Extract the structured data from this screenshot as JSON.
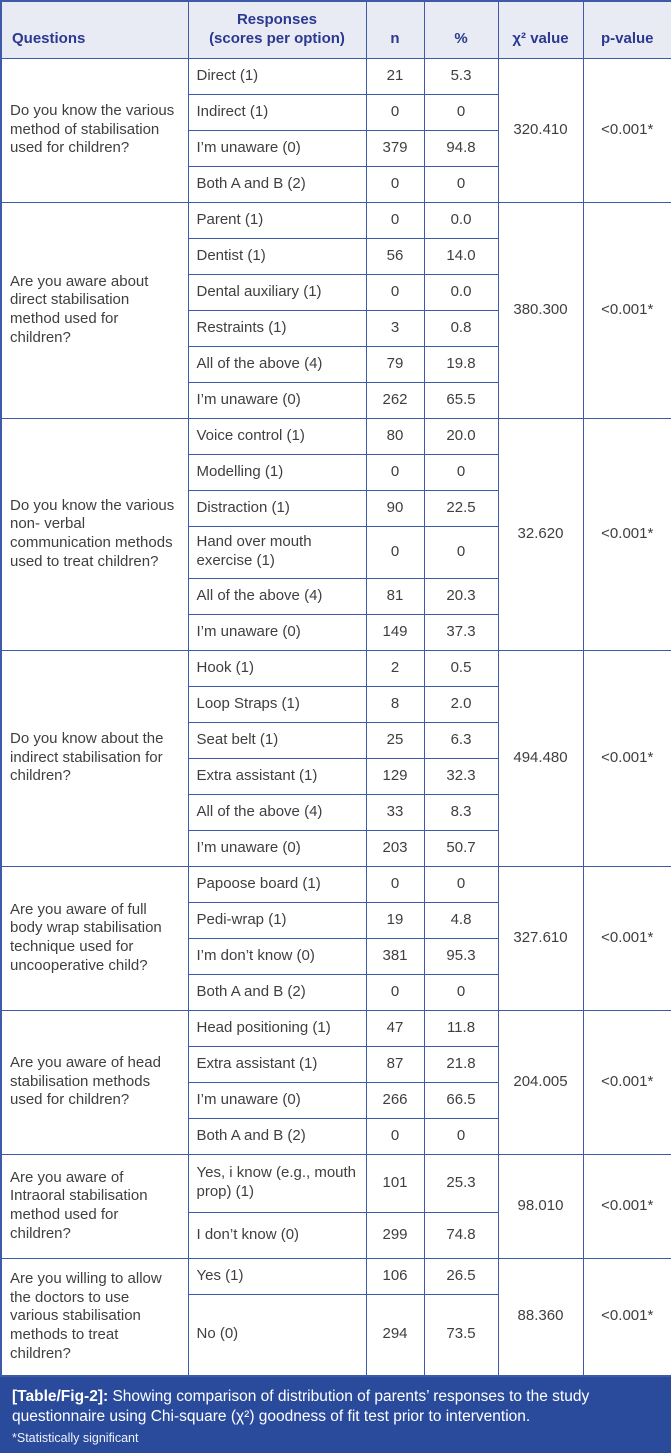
{
  "colors": {
    "accent_border": "#3e5ba9",
    "header_bg": "#e9ebf4",
    "header_text": "#2b3990",
    "body_text": "#3f3f3f",
    "caption_bg": "#2a4b9c"
  },
  "table": {
    "headers": [
      "Questions",
      "Responses\n(scores per option)",
      "n",
      "%",
      "χ² value",
      "p-value"
    ],
    "blocks": [
      {
        "question": "Do you know the various method of stabilisation used for children?",
        "chi_square": "320.410",
        "p_value": "<0.001*",
        "responses": [
          {
            "label": "Direct (1)",
            "n": "21",
            "pct": "5.3"
          },
          {
            "label": "Indirect (1)",
            "n": "0",
            "pct": "0"
          },
          {
            "label": "I’m unaware (0)",
            "n": "379",
            "pct": "94.8"
          },
          {
            "label": "Both A and B (2)",
            "n": "0",
            "pct": "0"
          }
        ]
      },
      {
        "question": "Are you aware about direct stabilisation method used for children?",
        "chi_square": "380.300",
        "p_value": "<0.001*",
        "responses": [
          {
            "label": "Parent (1)",
            "n": "0",
            "pct": "0.0"
          },
          {
            "label": "Dentist (1)",
            "n": "56",
            "pct": "14.0"
          },
          {
            "label": "Dental auxiliary (1)",
            "n": "0",
            "pct": "0.0"
          },
          {
            "label": "Restraints (1)",
            "n": "3",
            "pct": "0.8"
          },
          {
            "label": "All of the above (4)",
            "n": "79",
            "pct": "19.8"
          },
          {
            "label": "I’m unaware (0)",
            "n": "262",
            "pct": "65.5"
          }
        ]
      },
      {
        "question": "Do you know the various non- verbal communication methods used to treat children?",
        "chi_square": "32.620",
        "p_value": "<0.001*",
        "responses": [
          {
            "label": "Voice control (1)",
            "n": "80",
            "pct": "20.0"
          },
          {
            "label": "Modelling (1)",
            "n": "0",
            "pct": "0"
          },
          {
            "label": "Distraction (1)",
            "n": "90",
            "pct": "22.5"
          },
          {
            "label": "Hand over mouth exercise (1)",
            "n": "0",
            "pct": "0"
          },
          {
            "label": "All of the above (4)",
            "n": "81",
            "pct": "20.3"
          },
          {
            "label": "I’m unaware (0)",
            "n": "149",
            "pct": "37.3"
          }
        ]
      },
      {
        "question": "Do you know about the indirect stabilisation for children?",
        "chi_square": "494.480",
        "p_value": "<0.001*",
        "responses": [
          {
            "label": "Hook (1)",
            "n": "2",
            "pct": "0.5"
          },
          {
            "label": "Loop Straps (1)",
            "n": "8",
            "pct": "2.0"
          },
          {
            "label": "Seat belt (1)",
            "n": "25",
            "pct": "6.3"
          },
          {
            "label": "Extra assistant (1)",
            "n": "129",
            "pct": "32.3"
          },
          {
            "label": "All of the above (4)",
            "n": "33",
            "pct": "8.3"
          },
          {
            "label": "I’m unaware (0)",
            "n": "203",
            "pct": "50.7"
          }
        ]
      },
      {
        "question": "Are you aware of full body wrap stabilisation technique used for uncooperative child?",
        "chi_square": "327.610",
        "p_value": "<0.001*",
        "responses": [
          {
            "label": "Papoose board (1)",
            "n": "0",
            "pct": "0"
          },
          {
            "label": "Pedi-wrap (1)",
            "n": "19",
            "pct": "4.8"
          },
          {
            "label": "I’m don’t know (0)",
            "n": "381",
            "pct": "95.3"
          },
          {
            "label": "Both A and B (2)",
            "n": "0",
            "pct": "0"
          }
        ]
      },
      {
        "question": "Are you aware of head stabilisation methods used for children?",
        "chi_square": "204.005",
        "p_value": "<0.001*",
        "responses": [
          {
            "label": "Head positioning (1)",
            "n": "47",
            "pct": "11.8"
          },
          {
            "label": "Extra assistant (1)",
            "n": "87",
            "pct": "21.8"
          },
          {
            "label": "I’m unaware (0)",
            "n": "266",
            "pct": "66.5"
          },
          {
            "label": "Both A and B (2)",
            "n": "0",
            "pct": "0"
          }
        ]
      },
      {
        "question": "Are you aware of Intraoral stabilisation method used for children?",
        "chi_square": "98.010",
        "p_value": "<0.001*",
        "responses": [
          {
            "label": "Yes, i know (e.g., mouth prop) (1)",
            "n": "101",
            "pct": "25.3"
          },
          {
            "label": "I don’t know (0)",
            "n": "299",
            "pct": "74.8"
          }
        ]
      },
      {
        "question": "Are you willing to allow the doctors to use various stabilisation methods to treat children?",
        "chi_square": "88.360",
        "p_value": "<0.001*",
        "responses": [
          {
            "label": "Yes (1)",
            "n": "106",
            "pct": "26.5"
          },
          {
            "label": "No (0)",
            "n": "294",
            "pct": "73.5"
          }
        ]
      }
    ]
  },
  "caption": {
    "label": "[Table/Fig-2]:",
    "text": " Showing comparison of distribution of parents’ responses to the study questionnaire using Chi-square (χ²) goodness of fit test prior to intervention.",
    "footnote": "*Statistically significant"
  }
}
